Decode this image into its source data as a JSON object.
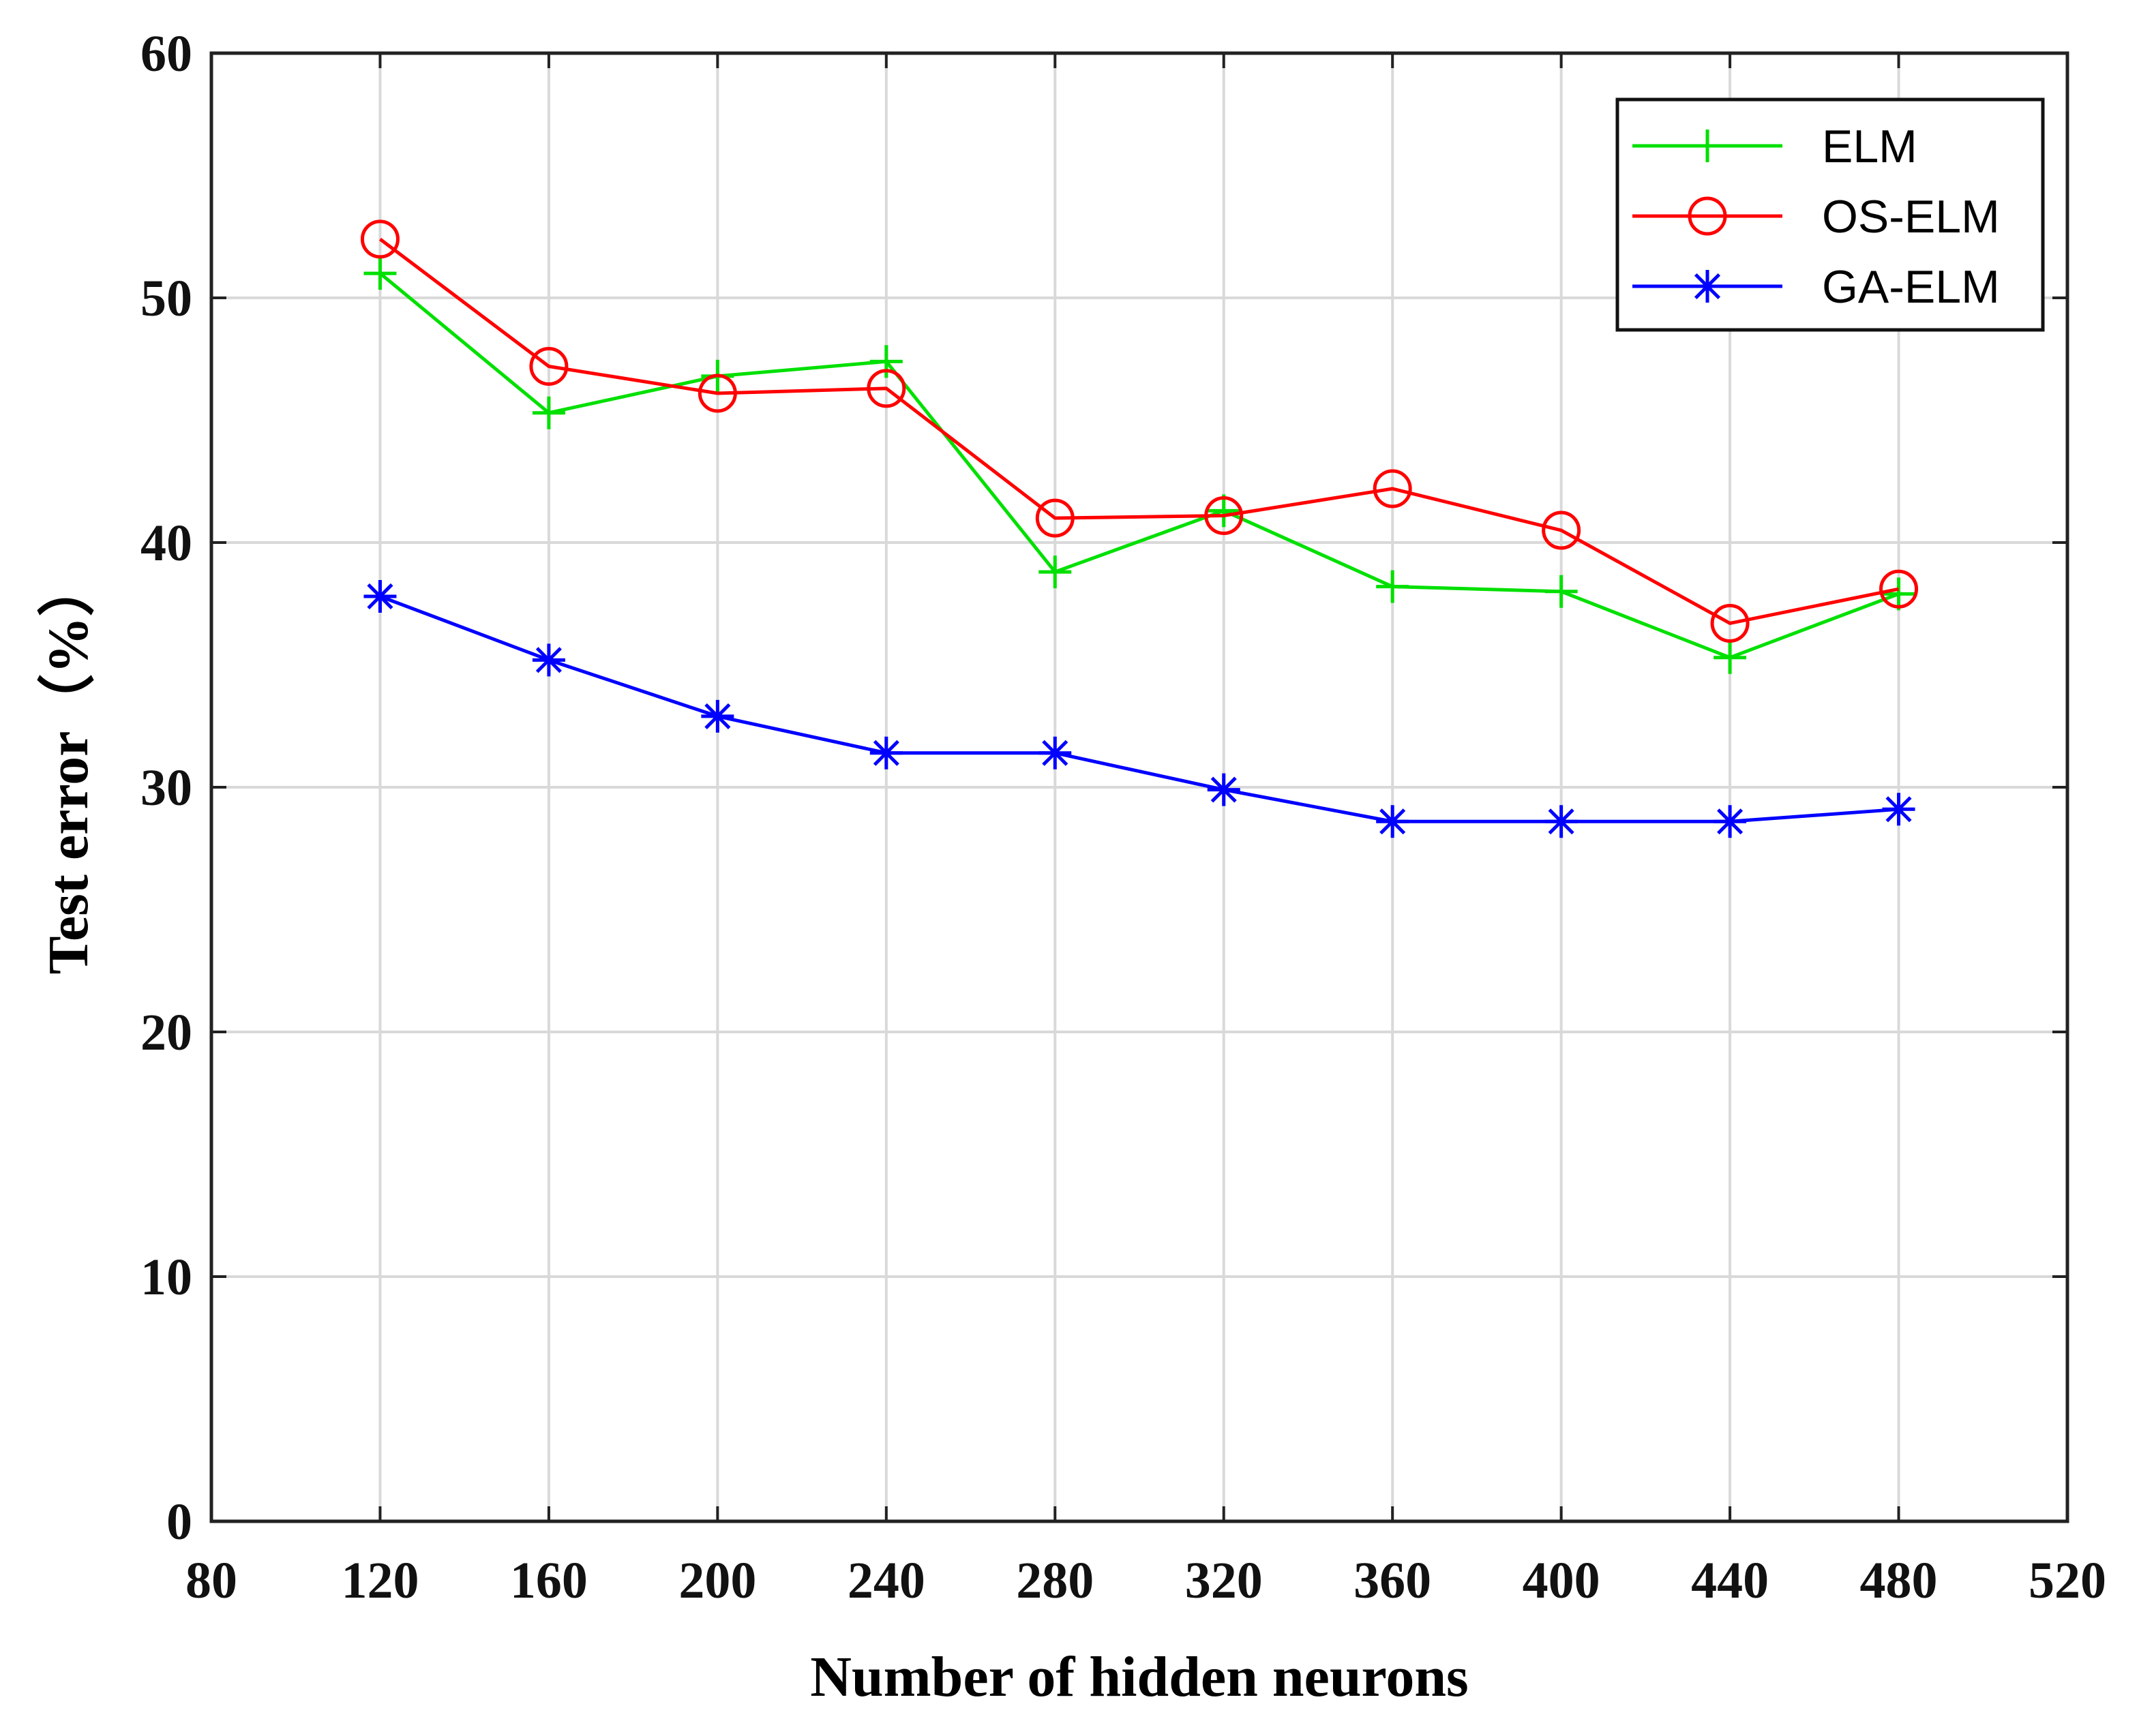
{
  "chart_data": {
    "type": "line",
    "title": "",
    "xlabel": "Number of hidden neurons",
    "ylabel": "Test error（%）",
    "x": [
      120,
      160,
      200,
      240,
      280,
      320,
      360,
      400,
      440,
      480
    ],
    "xlim": [
      80,
      520
    ],
    "ylim": [
      0,
      60
    ],
    "xticks": [
      "80",
      "120",
      "160",
      "200",
      "240",
      "280",
      "320",
      "360",
      "400",
      "440",
      "480",
      "520"
    ],
    "yticks": [
      "0",
      "10",
      "20",
      "30",
      "40",
      "50",
      "60"
    ],
    "grid": true,
    "legend_position": "top-right",
    "series": [
      {
        "name": "ELM",
        "color": "#00e000",
        "marker": "plus",
        "values": [
          51.0,
          45.3,
          46.8,
          47.4,
          38.8,
          41.3,
          38.2,
          38.0,
          35.3,
          37.9
        ]
      },
      {
        "name": "OS-ELM",
        "color": "#ff0000",
        "marker": "circle",
        "values": [
          52.4,
          47.2,
          46.1,
          46.3,
          41.0,
          41.1,
          42.2,
          40.5,
          36.7,
          38.1
        ]
      },
      {
        "name": "GA-ELM",
        "color": "#0000ff",
        "marker": "asterisk",
        "values": [
          37.8,
          35.2,
          32.9,
          31.4,
          31.4,
          29.9,
          28.6,
          28.6,
          28.6,
          29.1
        ]
      }
    ]
  }
}
